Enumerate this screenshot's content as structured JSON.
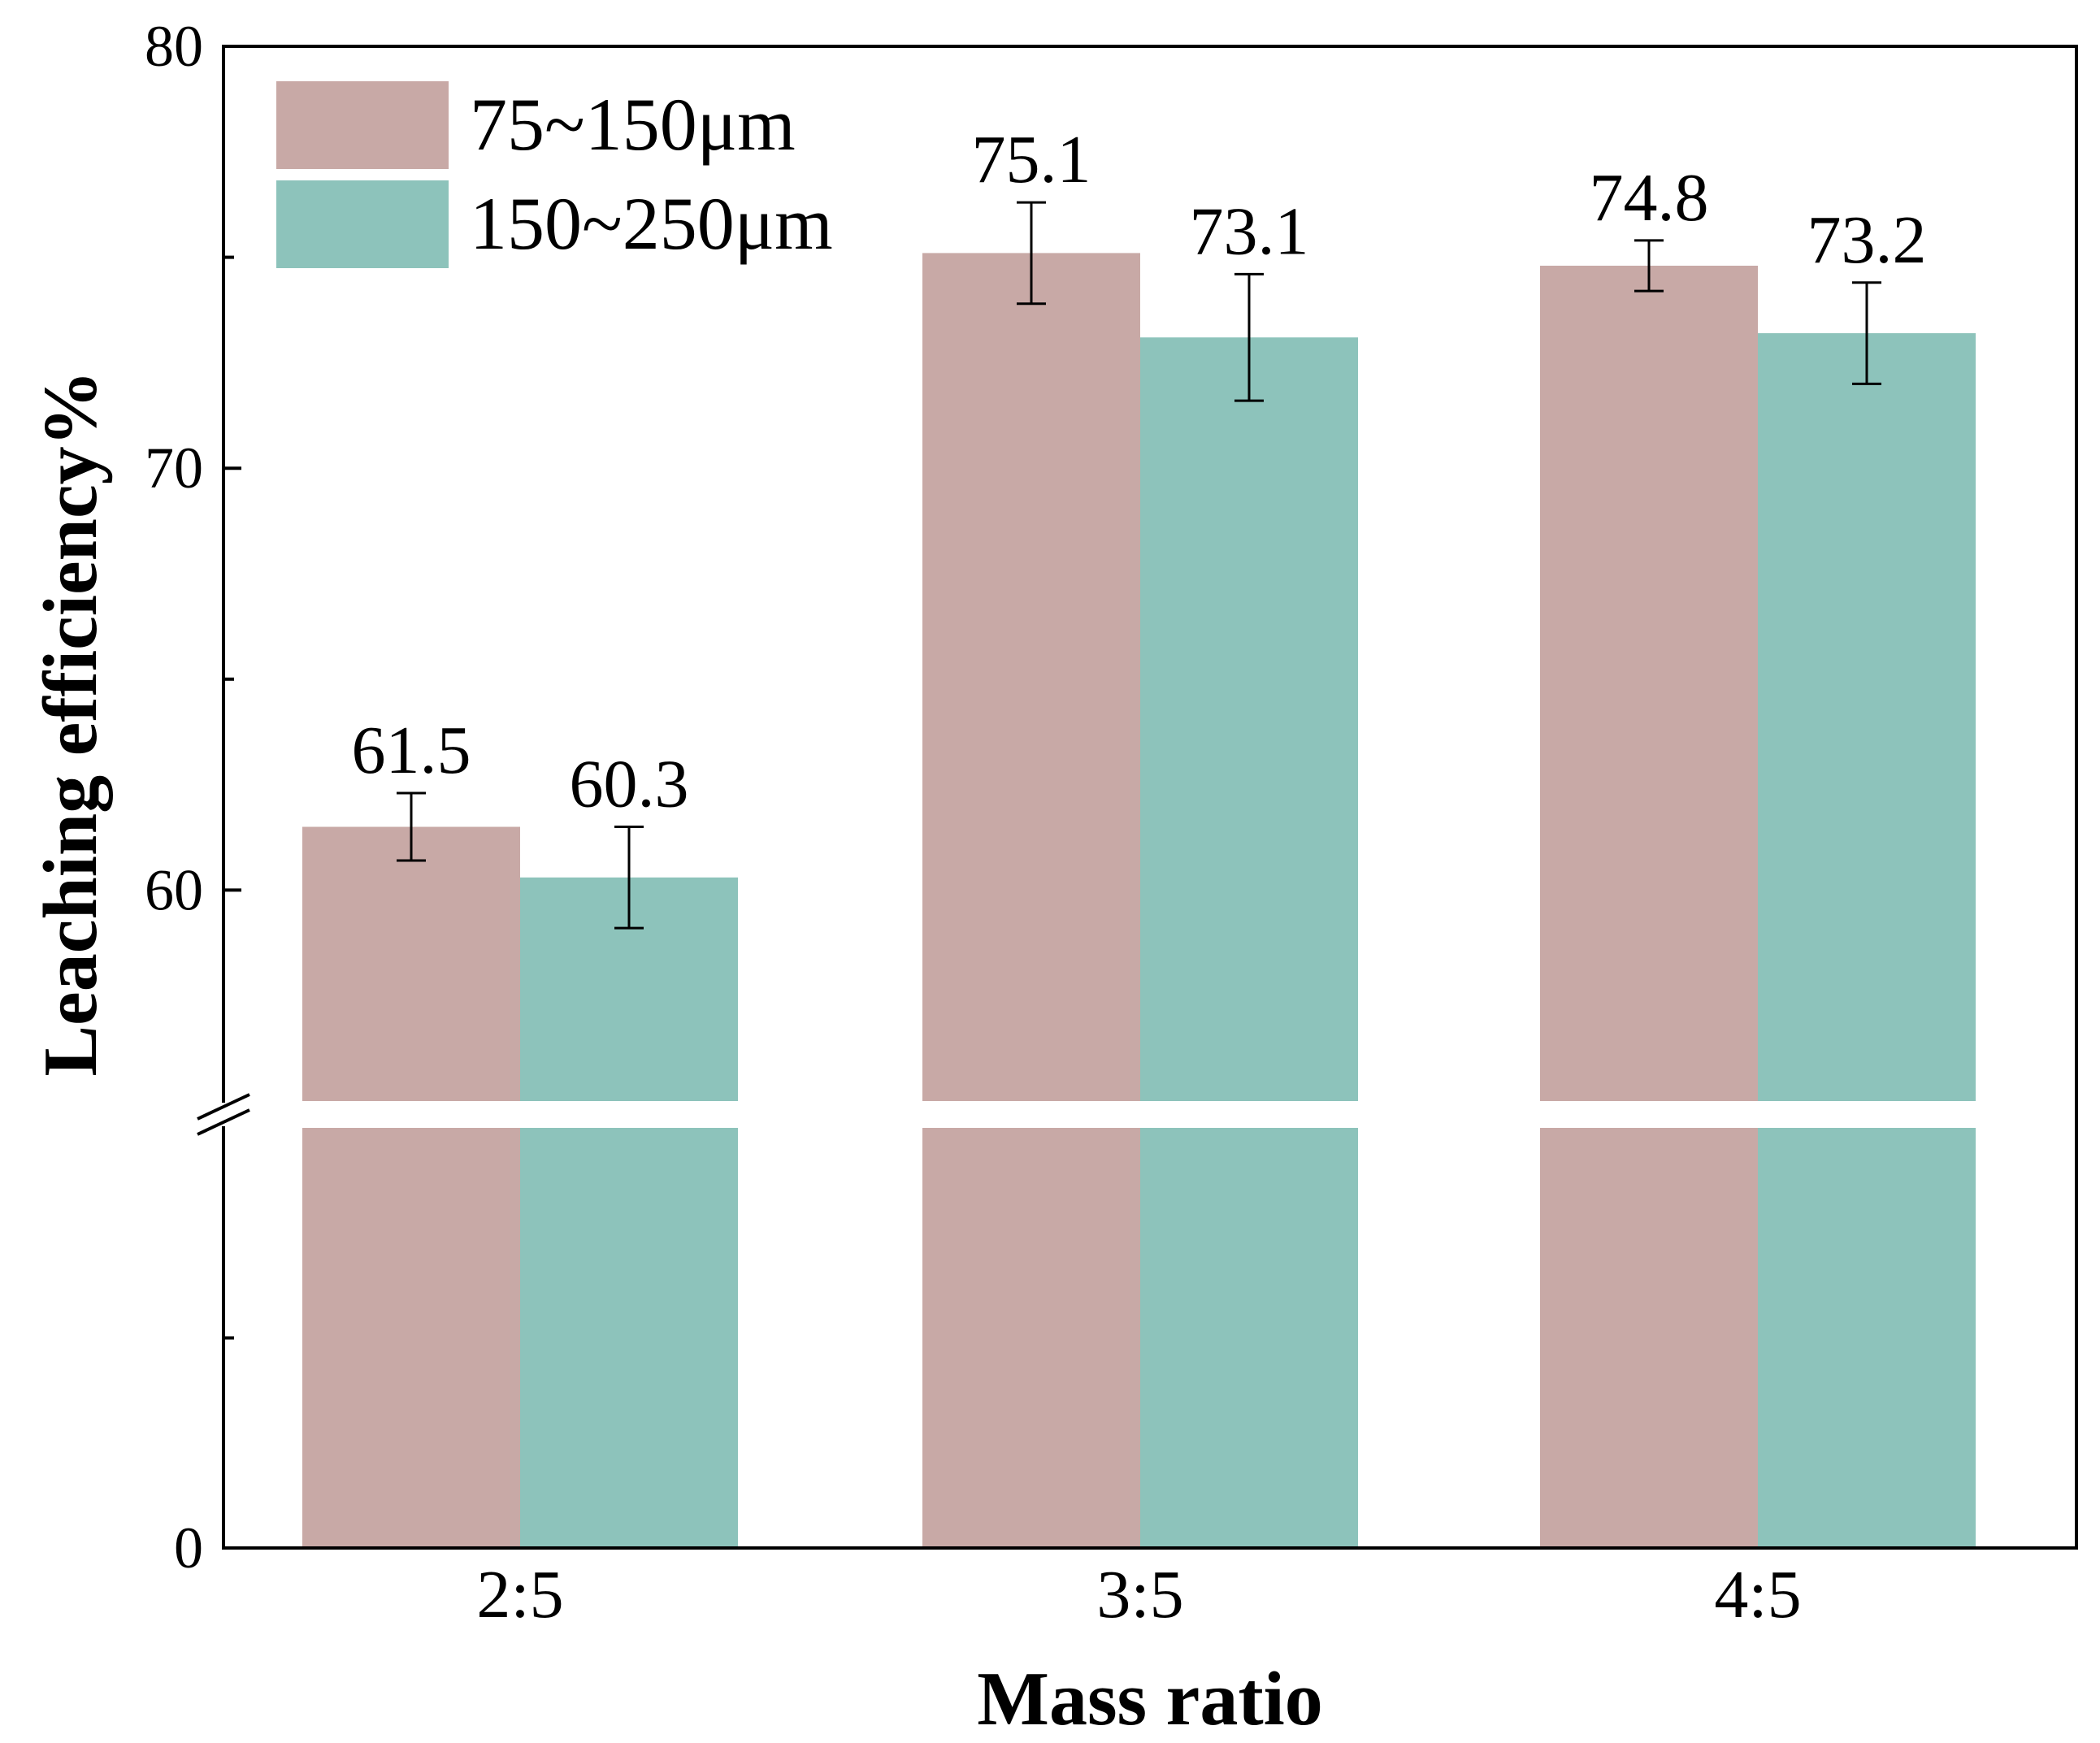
{
  "chart_data": {
    "type": "bar",
    "title": "",
    "xlabel": "Mass ratio",
    "ylabel": "Leaching efficiency%",
    "categories": [
      "2:5",
      "3:5",
      "4:5"
    ],
    "series": [
      {
        "name": "75~150μm",
        "color": "#c8a9a6",
        "values": [
          61.5,
          75.1,
          74.8
        ],
        "errors": [
          0.8,
          1.2,
          0.6
        ],
        "value_labels": [
          "61.5",
          "75.1",
          "74.8"
        ]
      },
      {
        "name": "150~250μm",
        "color": "#8dc3bb",
        "values": [
          60.3,
          73.1,
          73.2
        ],
        "errors": [
          1.2,
          1.5,
          1.2
        ],
        "value_labels": [
          "60.3",
          "73.1",
          "73.2"
        ]
      }
    ],
    "y_axis": {
      "broken": true,
      "lower_segment": [
        0,
        55
      ],
      "upper_segment": [
        55,
        80
      ],
      "tick_labels": [
        "0",
        "60",
        "70",
        "80"
      ],
      "tick_values": [
        0,
        60,
        70,
        80
      ]
    },
    "legend_position": "top-left",
    "grid": false
  }
}
